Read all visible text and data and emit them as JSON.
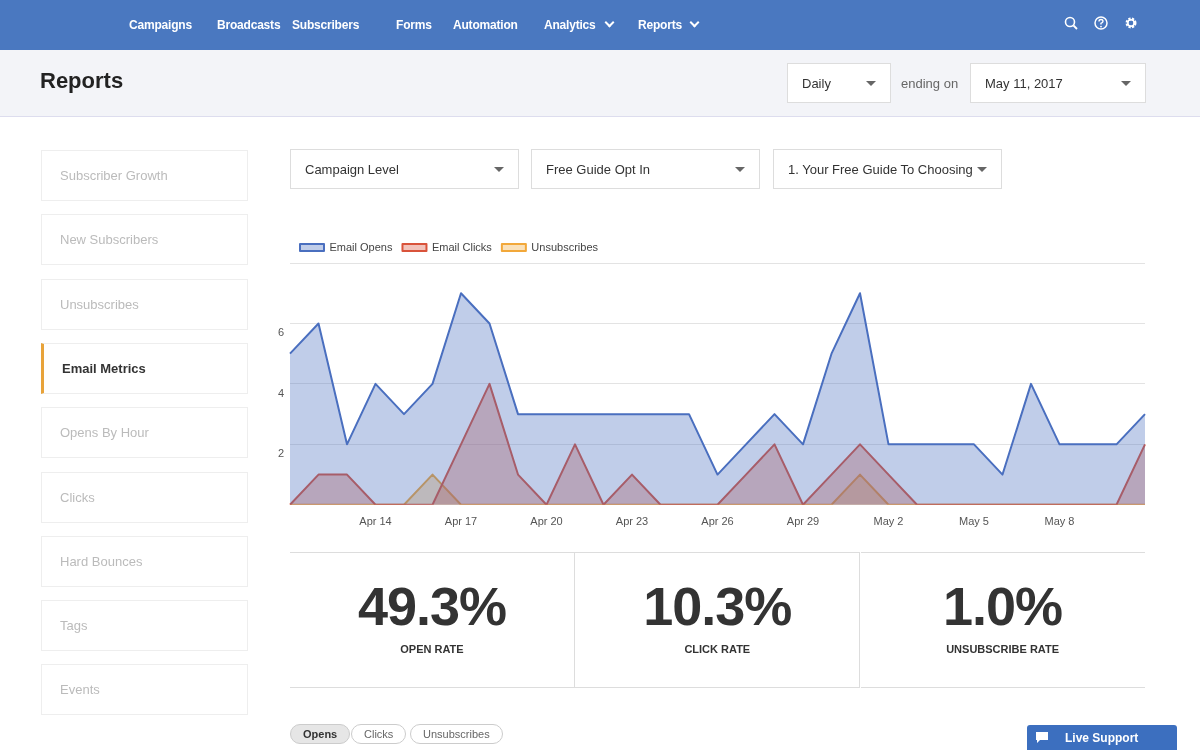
{
  "chart_data": [
    {
      "type": "other",
      "title": "Reports",
      "annotations": [
        "Campaigns",
        "Broadcasts",
        "Subscribers",
        "Forms",
        "Automation",
        "Analytics",
        "Reports",
        "Daily",
        "ending on",
        "May 11, 2017",
        "Subscriber Growth",
        "New Subscribers",
        "Unsubscribes",
        "Email Metrics",
        "Opens By Hour",
        "Clicks",
        "Hard Bounces",
        "Tags",
        "Events",
        "Campaign Level",
        "Free Guide Opt In",
        "1. Your Free Guide To Choosing",
        "Opens",
        "Clicks",
        "Unsubscribes",
        "Live Support"
      ]
    },
    {
      "type": "area",
      "categories": [
        null,
        null,
        null,
        "Apr 14",
        null,
        null,
        "Apr 17",
        null,
        null,
        "Apr 20",
        null,
        null,
        "Apr 23",
        null,
        null,
        "Apr 26",
        null,
        null,
        "Apr 29",
        null,
        null,
        "May 2",
        null,
        null,
        "May 5",
        null,
        null,
        "May 8",
        null,
        null,
        null
      ],
      "series": [
        {
          "name": "Email Opens",
          "color": "#4a6fbf",
          "values": [
            5,
            6,
            2,
            4,
            3,
            4,
            7,
            6,
            3,
            3,
            3,
            3,
            3,
            3,
            3,
            1,
            2,
            3,
            2,
            5,
            7,
            2,
            2,
            2,
            2,
            1,
            4,
            2,
            2,
            2,
            3
          ]
        },
        {
          "name": "Email Clicks",
          "color": "#d9533b",
          "values": [
            0,
            1,
            1,
            0,
            0,
            0,
            2,
            4,
            1,
            0,
            2,
            0,
            1,
            0,
            0,
            0,
            1,
            2,
            0,
            1,
            2,
            1,
            0,
            0,
            0,
            0,
            0,
            0,
            0,
            0,
            2
          ]
        },
        {
          "name": "Unsubscribes",
          "color": "#f2a83a",
          "values": [
            0,
            0,
            0,
            0,
            0,
            1,
            0,
            0,
            0,
            0,
            0,
            0,
            0,
            0,
            0,
            0,
            0,
            0,
            0,
            0,
            1,
            0,
            0,
            0,
            0,
            0,
            0,
            0,
            0,
            0,
            0
          ]
        }
      ],
      "ylim": [
        0,
        8
      ],
      "yticks": [
        {
          "value": 0,
          "label": null
        },
        2,
        4,
        6,
        {
          "value": 8,
          "label": null
        }
      ],
      "grid": "y",
      "legend": "top left",
      "marker": "none"
    },
    {
      "type": "other",
      "annotations": [
        "49.3%",
        "OPEN RATE",
        "10.3%",
        "CLICK RATE",
        "1.0%",
        "UNSUBSCRIBE RATE"
      ]
    }
  ]
}
